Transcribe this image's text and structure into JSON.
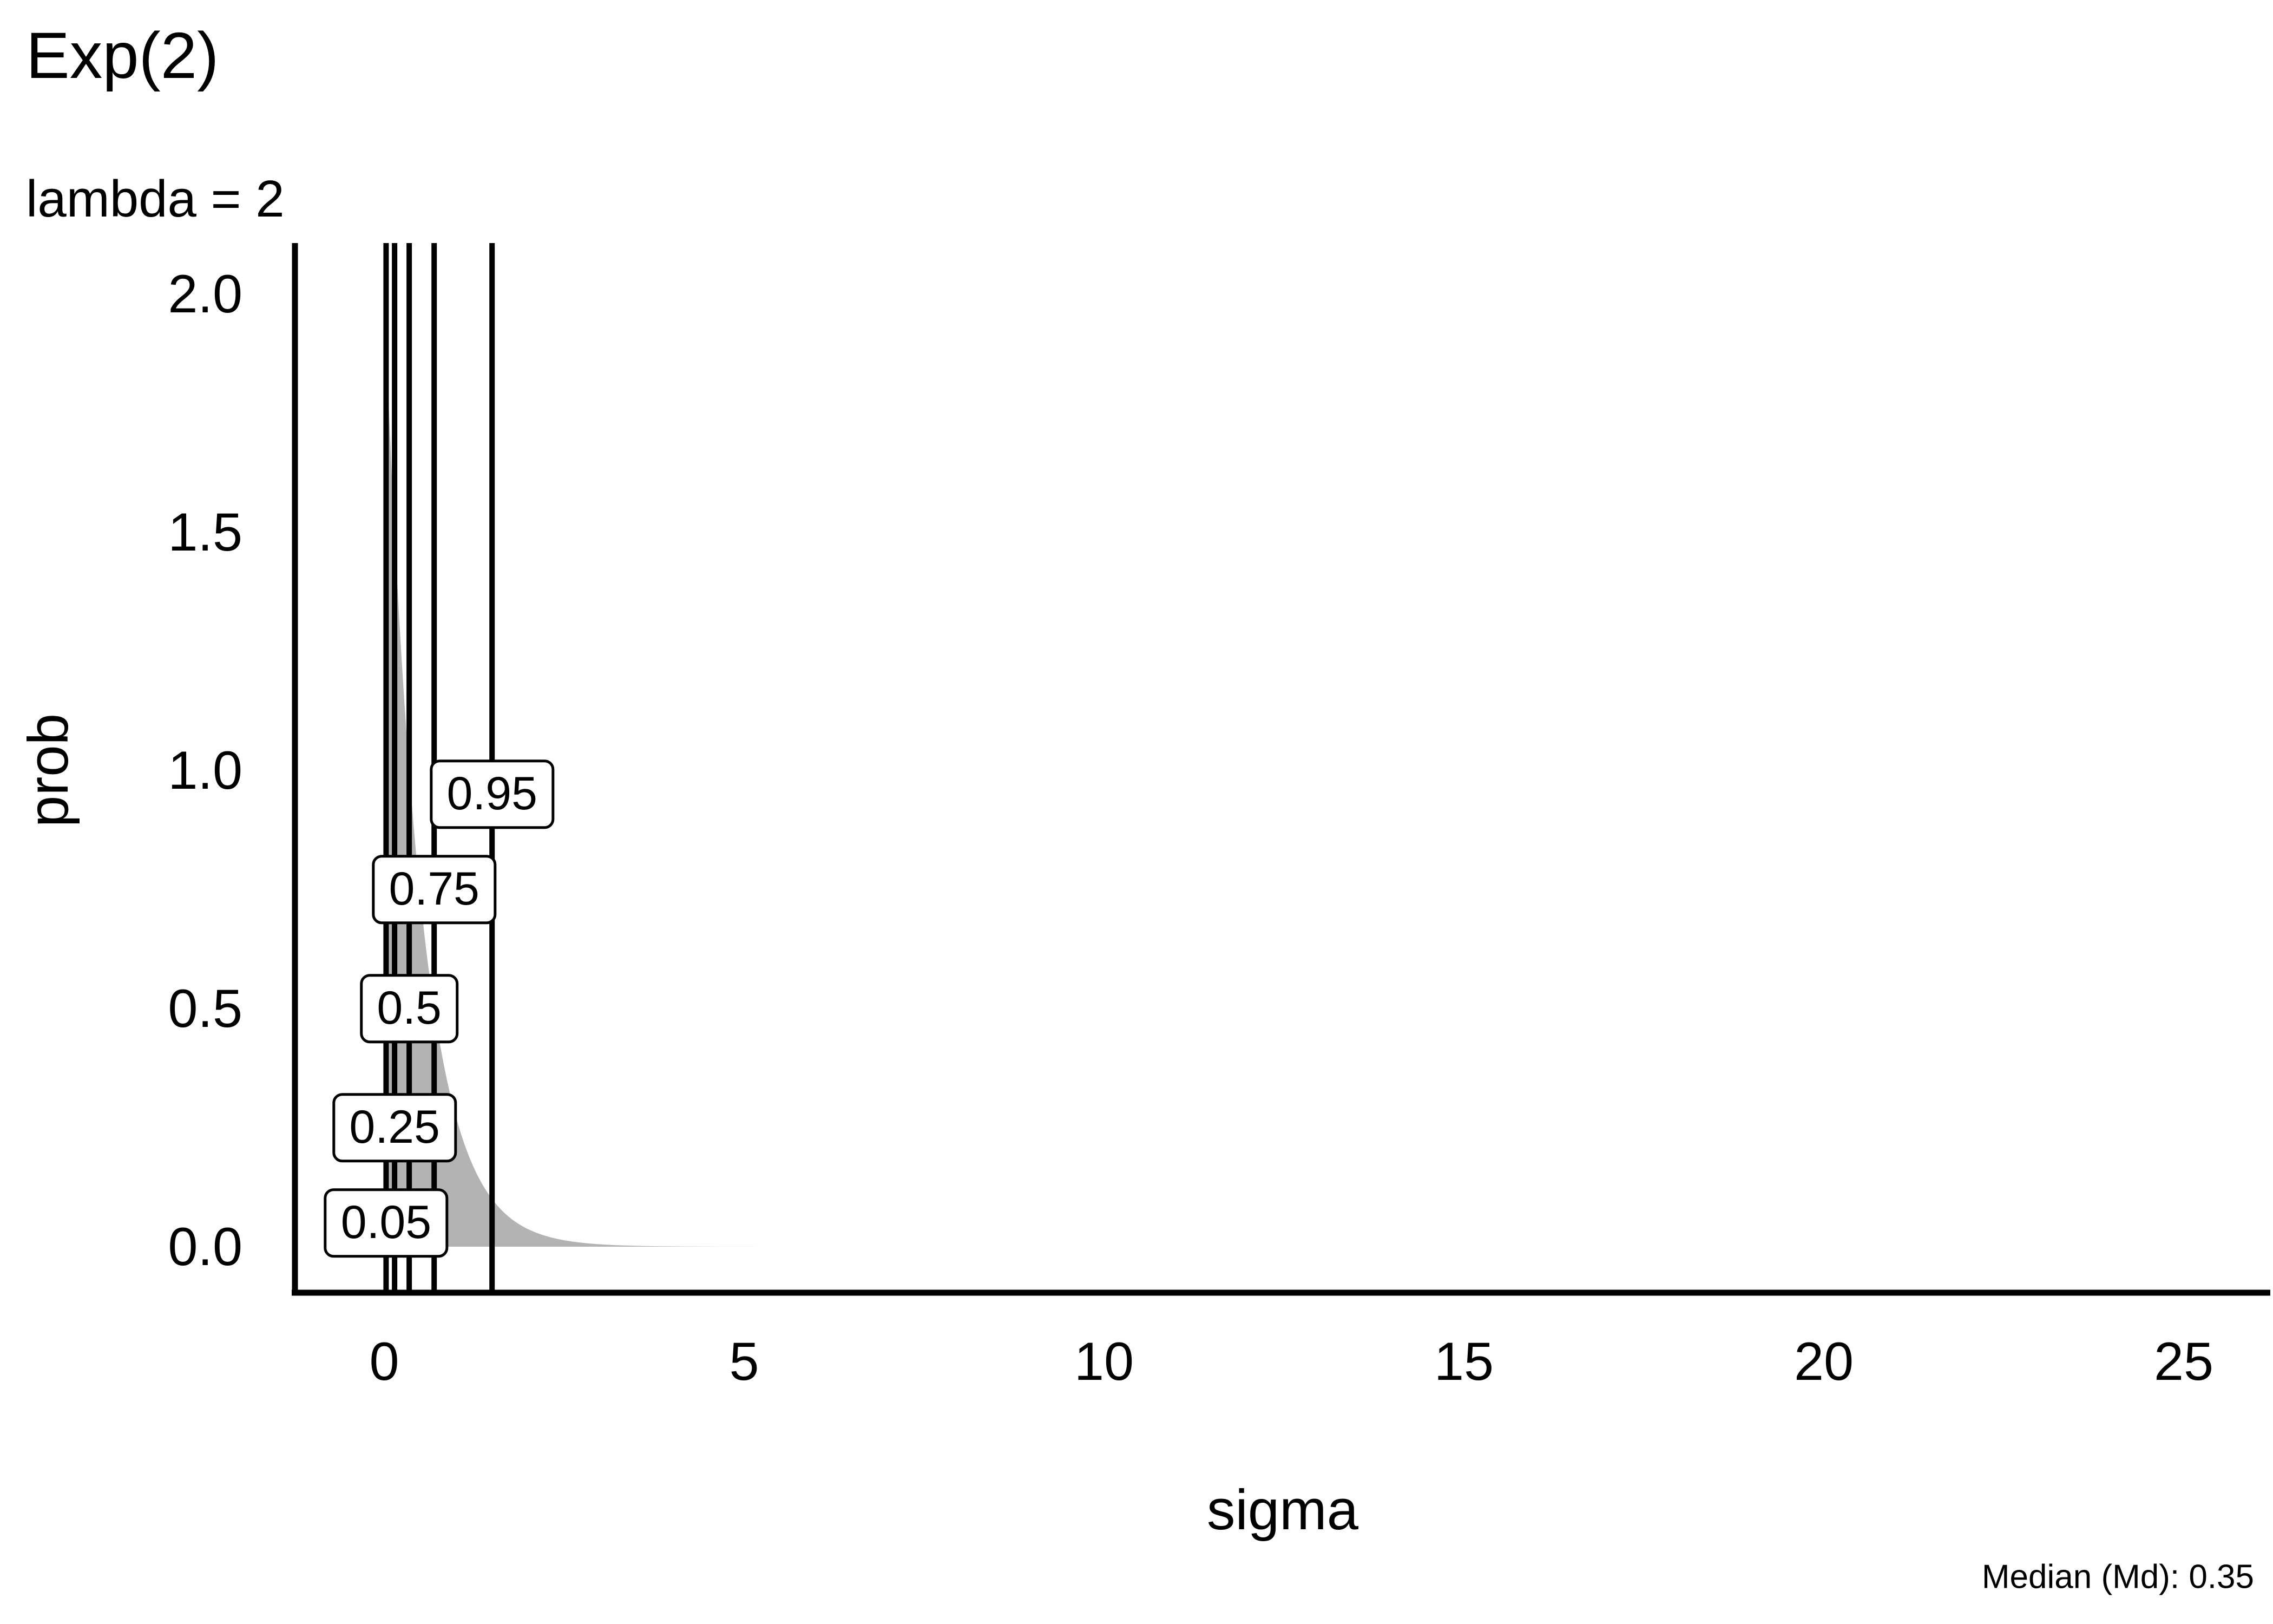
{
  "header": {
    "title": "Exp(2)",
    "subtitle": "lambda = 2"
  },
  "footer": {
    "median_note": "Median (Md): 0.35"
  },
  "chart_data": {
    "type": "area",
    "title": "Exp(2)",
    "subtitle": "lambda = 2",
    "distribution": "Exponential",
    "rate_lambda": 2,
    "curve_formula": "density(x) = 2 * exp(-2 * x), x >= 0",
    "xlabel": "sigma",
    "ylabel": "prob",
    "xlim": [
      -1.25,
      26.3
    ],
    "ylim": [
      -0.1,
      2.1
    ],
    "x_ticks": [
      "0",
      "5",
      "10",
      "15",
      "20",
      "25"
    ],
    "y_ticks": [
      "0.0",
      "0.5",
      "1.0",
      "1.5",
      "2.0"
    ],
    "grid": "off",
    "legend": "none",
    "fill_color": "#b3b3b3",
    "line_color": "#000000",
    "background_color": "#ffffff",
    "density_peak": 2.0,
    "quantiles": [
      {
        "label": "0.05",
        "prob": 0.05,
        "sigma": 0.0256
      },
      {
        "label": "0.25",
        "prob": 0.25,
        "sigma": 0.1438
      },
      {
        "label": "0.5",
        "prob": 0.5,
        "sigma": 0.3466
      },
      {
        "label": "0.75",
        "prob": 0.75,
        "sigma": 0.6931
      },
      {
        "label": "0.95",
        "prob": 0.95,
        "sigma": 1.4979
      }
    ],
    "median_note": "Median (Md): 0.35",
    "median_value": 0.35
  }
}
